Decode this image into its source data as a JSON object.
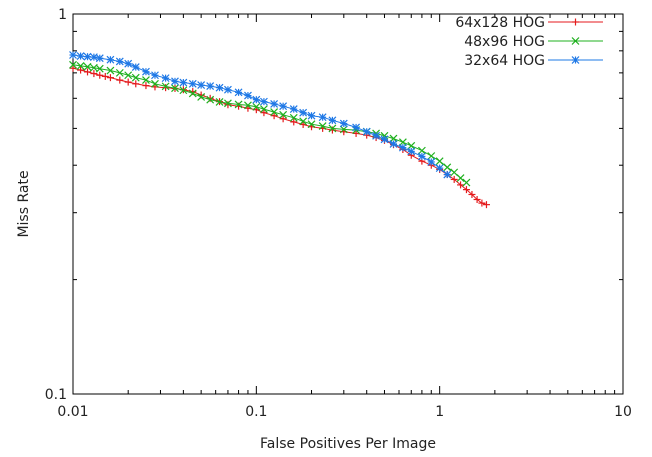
{
  "chart_data": {
    "type": "line",
    "title": "",
    "xlabel": "False Positives Per Image",
    "ylabel": "Miss Rate",
    "xscale": "log",
    "yscale": "log",
    "xlim": [
      0.01,
      10
    ],
    "ylim": [
      0.1,
      1
    ],
    "xticks": [
      {
        "value": 0.01,
        "label": "0.01"
      },
      {
        "value": 0.1,
        "label": "0.1"
      },
      {
        "value": 1,
        "label": "1"
      },
      {
        "value": 10,
        "label": "10"
      }
    ],
    "yticks": [
      {
        "value": 0.1,
        "label": "0.1"
      },
      {
        "value": 1,
        "label": "1"
      }
    ],
    "grid": false,
    "legend_position": "top-right",
    "series": [
      {
        "name": "64x128 HOG",
        "color": "#e41a1c",
        "marker": "+",
        "x": [
          0.01,
          0.011,
          0.012,
          0.013,
          0.014,
          0.015,
          0.016,
          0.018,
          0.02,
          0.022,
          0.025,
          0.028,
          0.032,
          0.036,
          0.04,
          0.045,
          0.05,
          0.056,
          0.063,
          0.07,
          0.08,
          0.09,
          0.1,
          0.11,
          0.125,
          0.14,
          0.16,
          0.18,
          0.2,
          0.23,
          0.26,
          0.3,
          0.35,
          0.4,
          0.45,
          0.5,
          0.56,
          0.63,
          0.7,
          0.8,
          0.9,
          1.0,
          1.1,
          1.2,
          1.3,
          1.4,
          1.5,
          1.6,
          1.7,
          1.8
        ],
        "y": [
          0.72,
          0.712,
          0.704,
          0.697,
          0.69,
          0.685,
          0.68,
          0.67,
          0.662,
          0.655,
          0.648,
          0.643,
          0.64,
          0.637,
          0.632,
          0.625,
          0.612,
          0.6,
          0.588,
          0.577,
          0.572,
          0.565,
          0.56,
          0.55,
          0.54,
          0.53,
          0.52,
          0.512,
          0.505,
          0.5,
          0.495,
          0.49,
          0.485,
          0.48,
          0.473,
          0.465,
          0.453,
          0.44,
          0.425,
          0.41,
          0.4,
          0.39,
          0.378,
          0.367,
          0.355,
          0.345,
          0.335,
          0.325,
          0.318,
          0.315
        ]
      },
      {
        "name": "48x96 HOG",
        "color": "#1fb01f",
        "marker": "x",
        "x": [
          0.01,
          0.011,
          0.012,
          0.013,
          0.014,
          0.016,
          0.018,
          0.02,
          0.022,
          0.025,
          0.028,
          0.032,
          0.036,
          0.04,
          0.045,
          0.05,
          0.056,
          0.063,
          0.07,
          0.08,
          0.09,
          0.1,
          0.11,
          0.125,
          0.14,
          0.16,
          0.18,
          0.2,
          0.23,
          0.26,
          0.3,
          0.35,
          0.4,
          0.45,
          0.5,
          0.56,
          0.63,
          0.7,
          0.8,
          0.9,
          1.0,
          1.1,
          1.2,
          1.3,
          1.4
        ],
        "y": [
          0.735,
          0.73,
          0.726,
          0.722,
          0.718,
          0.71,
          0.7,
          0.69,
          0.68,
          0.67,
          0.655,
          0.645,
          0.638,
          0.63,
          0.618,
          0.605,
          0.595,
          0.587,
          0.582,
          0.578,
          0.575,
          0.57,
          0.562,
          0.552,
          0.543,
          0.533,
          0.522,
          0.513,
          0.507,
          0.5,
          0.497,
          0.495,
          0.49,
          0.485,
          0.478,
          0.47,
          0.46,
          0.45,
          0.437,
          0.423,
          0.41,
          0.395,
          0.383,
          0.37,
          0.36
        ]
      },
      {
        "name": "32x64 HOG",
        "color": "#1e78e6",
        "marker": "*",
        "x": [
          0.01,
          0.011,
          0.012,
          0.013,
          0.014,
          0.016,
          0.018,
          0.02,
          0.022,
          0.025,
          0.028,
          0.032,
          0.036,
          0.04,
          0.045,
          0.05,
          0.056,
          0.063,
          0.07,
          0.08,
          0.09,
          0.1,
          0.11,
          0.125,
          0.14,
          0.16,
          0.18,
          0.2,
          0.23,
          0.26,
          0.3,
          0.35,
          0.4,
          0.45,
          0.5,
          0.56,
          0.63,
          0.7,
          0.8,
          0.9,
          1.0,
          1.1
        ],
        "y": [
          0.78,
          0.775,
          0.772,
          0.77,
          0.765,
          0.758,
          0.75,
          0.74,
          0.725,
          0.705,
          0.69,
          0.678,
          0.665,
          0.66,
          0.655,
          0.65,
          0.646,
          0.64,
          0.632,
          0.622,
          0.61,
          0.595,
          0.588,
          0.58,
          0.572,
          0.562,
          0.55,
          0.54,
          0.535,
          0.525,
          0.515,
          0.503,
          0.49,
          0.478,
          0.468,
          0.455,
          0.445,
          0.435,
          0.422,
          0.408,
          0.393,
          0.378
        ]
      }
    ]
  }
}
